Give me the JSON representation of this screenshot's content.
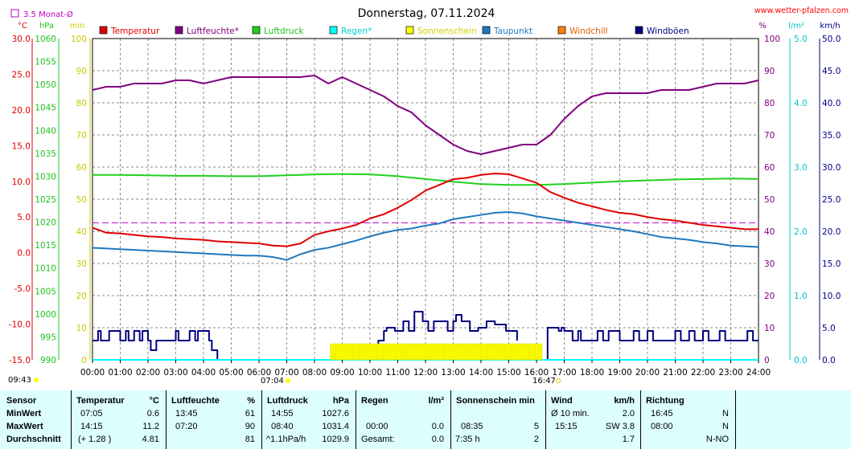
{
  "header": {
    "title": "Donnerstag, 07.11.2024",
    "site": "www.wetter-pfalzen.com",
    "avg_label": "3.5 Monat-Ø"
  },
  "units": {
    "temp": "°C",
    "pressure": "hPa",
    "minutes": "min",
    "percent": "%",
    "rain": "l/m²",
    "wind": "km/h"
  },
  "legend": [
    {
      "label": "Temperatur",
      "color": "#e00000",
      "textColor": "#e00000"
    },
    {
      "label": "Luftfeuchte*",
      "color": "#800080",
      "textColor": "#800080"
    },
    {
      "label": "Luftdruck",
      "color": "#20d020",
      "textColor": "#20c020"
    },
    {
      "label": "Regen*",
      "color": "#00ffff",
      "textColor": "#00d0d0"
    },
    {
      "label": "Sonnenschein",
      "color": "#ffff00",
      "textColor": "#d0d000"
    },
    {
      "label": "Taupunkt",
      "color": "#1e78c0",
      "textColor": "#1e78c0"
    },
    {
      "label": "Windchill",
      "color": "#ff8000",
      "textColor": "#e06000"
    },
    {
      "label": "Windböen",
      "color": "#000080",
      "textColor": "#000080"
    }
  ],
  "sun_markers": {
    "sunrise": "07:04",
    "sunset": "16:47"
  },
  "chart_data": {
    "type": "line",
    "title": "Donnerstag, 07.11.2024",
    "x_unit": "hours",
    "x_range": [
      0,
      24
    ],
    "x_ticks": [
      "00:00",
      "01:00",
      "02:00",
      "03:00",
      "04:00",
      "05:00",
      "06:00",
      "07:00",
      "08:00",
      "09:00",
      "10:00",
      "11:00",
      "12:00",
      "13:00",
      "14:00",
      "15:00",
      "16:00",
      "17:00",
      "18:00",
      "19:00",
      "20:00",
      "21:00",
      "22:00",
      "23:00",
      "24:00"
    ],
    "grid": true,
    "axes": {
      "temp": {
        "label": "°C",
        "range": [
          -15,
          30
        ],
        "ticks": [
          "30.0",
          "25.0",
          "20.0",
          "15.0",
          "10.0",
          "5.0",
          "0.0",
          "-5.0",
          "-10.0",
          "-15.0"
        ]
      },
      "pressure": {
        "label": "hPa",
        "range": [
          990,
          1060
        ],
        "ticks": [
          "1060",
          "1055",
          "1050",
          "1045",
          "1040",
          "1035",
          "1030",
          "1025",
          "1020",
          "1015",
          "1010",
          "1005",
          "1000",
          "995",
          "990"
        ]
      },
      "minutes": {
        "label": "min",
        "range": [
          0,
          100
        ],
        "ticks": [
          "100",
          "90",
          "80",
          "70",
          "60",
          "50",
          "40",
          "30",
          "20",
          "10",
          "0"
        ]
      },
      "humidity": {
        "label": "%",
        "range": [
          0,
          100
        ],
        "ticks": [
          "100",
          "90",
          "80",
          "70",
          "60",
          "50",
          "40",
          "30",
          "20",
          "10",
          "0"
        ]
      },
      "rain": {
        "label": "l/m²",
        "range": [
          0,
          5
        ],
        "ticks": [
          "5.0",
          "4.0",
          "3.0",
          "2.0",
          "1.0",
          "0.0"
        ]
      },
      "wind": {
        "label": "km/h",
        "range": [
          0,
          50
        ],
        "ticks": [
          "50.0",
          "45.0",
          "40.0",
          "35.0",
          "30.0",
          "25.0",
          "20.0",
          "15.0",
          "10.0",
          "5.0",
          "0.0"
        ]
      }
    },
    "reference_line": {
      "name": "3.5 Monat-Ø",
      "axis": "temp",
      "value": 4.2
    },
    "series": [
      {
        "name": "Luftfeuchte*",
        "axis": "humidity",
        "color": "#800080",
        "x": [
          0,
          0.5,
          1,
          1.5,
          2,
          2.5,
          3,
          3.5,
          4,
          4.5,
          5,
          5.5,
          6,
          6.5,
          7,
          7.5,
          8,
          8.5,
          9,
          9.5,
          10,
          10.5,
          11,
          11.5,
          12,
          12.5,
          13,
          13.5,
          14,
          14.5,
          15,
          15.5,
          16,
          16.5,
          17,
          17.5,
          18,
          18.5,
          19,
          19.5,
          20,
          20.5,
          21,
          21.5,
          22,
          22.5,
          23,
          23.5,
          24
        ],
        "y": [
          84,
          85,
          85,
          86,
          86,
          86,
          87,
          87,
          86,
          87,
          88,
          88,
          88,
          88,
          88,
          88,
          88.5,
          86,
          88,
          86,
          84,
          82,
          79,
          77,
          73,
          70,
          67,
          65,
          64,
          65,
          66,
          67,
          67,
          70,
          75,
          79,
          82,
          83,
          83,
          83,
          83,
          84,
          84,
          84,
          85,
          86,
          86,
          86,
          87
        ]
      },
      {
        "name": "Luftdruck",
        "axis": "pressure",
        "color": "#20d020",
        "x": [
          0,
          1,
          2,
          3,
          4,
          5,
          6,
          7,
          8,
          9,
          10,
          11,
          12,
          13,
          14,
          15,
          16,
          17,
          18,
          19,
          20,
          21,
          22,
          23,
          24
        ],
        "y": [
          1030.3,
          1030.3,
          1030.2,
          1030.1,
          1030.1,
          1030.0,
          1030.0,
          1030.2,
          1030.4,
          1030.5,
          1030.4,
          1030.0,
          1029.4,
          1028.8,
          1028.3,
          1028.1,
          1028.1,
          1028.3,
          1028.6,
          1028.9,
          1029.1,
          1029.3,
          1029.4,
          1029.5,
          1029.4
        ]
      },
      {
        "name": "Temperatur",
        "axis": "temp",
        "color": "#e00000",
        "x": [
          0,
          0.5,
          1,
          1.5,
          2,
          2.5,
          3,
          3.5,
          4,
          4.5,
          5,
          5.5,
          6,
          6.5,
          7,
          7.5,
          8,
          8.5,
          9,
          9.5,
          10,
          10.5,
          11,
          11.5,
          12,
          12.5,
          13,
          13.5,
          14,
          14.5,
          15,
          15.5,
          16,
          16.5,
          17,
          17.5,
          18,
          18.5,
          19,
          19.5,
          20,
          20.5,
          21,
          21.5,
          22,
          22.5,
          23,
          23.5,
          24
        ],
        "y": [
          3.5,
          2.8,
          2.7,
          2.5,
          2.3,
          2.2,
          2.0,
          1.9,
          1.8,
          1.6,
          1.5,
          1.4,
          1.3,
          1.0,
          0.9,
          1.3,
          2.5,
          3.0,
          3.4,
          3.9,
          4.8,
          5.4,
          6.3,
          7.4,
          8.7,
          9.5,
          10.3,
          10.5,
          10.9,
          11.1,
          11.0,
          10.4,
          9.8,
          8.5,
          7.7,
          7.0,
          6.5,
          6.0,
          5.6,
          5.4,
          5.0,
          4.7,
          4.5,
          4.2,
          3.9,
          3.7,
          3.5,
          3.3,
          3.3
        ]
      },
      {
        "name": "Taupunkt",
        "axis": "temp",
        "color": "#1e78c0",
        "x": [
          0,
          0.5,
          1,
          1.5,
          2,
          2.5,
          3,
          3.5,
          4,
          4.5,
          5,
          5.5,
          6,
          6.5,
          7,
          7.5,
          8,
          8.5,
          9,
          9.5,
          10,
          10.5,
          11,
          11.5,
          12,
          12.5,
          13,
          13.5,
          14,
          14.5,
          15,
          15.5,
          16,
          16.5,
          17,
          17.5,
          18,
          18.5,
          19,
          19.5,
          20,
          20.5,
          21,
          21.5,
          22,
          22.5,
          23,
          23.5,
          24
        ],
        "y": [
          0.7,
          0.6,
          0.5,
          0.4,
          0.3,
          0.2,
          0.1,
          0.0,
          -0.1,
          -0.2,
          -0.3,
          -0.4,
          -0.4,
          -0.6,
          -1.0,
          -0.2,
          0.4,
          0.7,
          1.2,
          1.7,
          2.3,
          2.8,
          3.2,
          3.4,
          3.8,
          4.1,
          4.7,
          5.0,
          5.3,
          5.6,
          5.7,
          5.5,
          5.1,
          4.8,
          4.5,
          4.2,
          3.9,
          3.6,
          3.3,
          3.0,
          2.6,
          2.2,
          2.0,
          1.8,
          1.5,
          1.3,
          1.0,
          0.9,
          0.8
        ]
      },
      {
        "name": "Windböen",
        "axis": "wind",
        "color": "#000080",
        "step": true,
        "x": [
          0,
          0.2,
          0.3,
          0.5,
          0.6,
          1.0,
          1.2,
          1.3,
          1.5,
          1.7,
          1.8,
          2.0,
          2.1,
          2.3,
          2.5,
          2.8,
          3.0,
          3.1,
          3.3,
          3.5,
          3.7,
          3.8,
          4.2,
          4.3,
          4.5,
          4.6,
          9.5,
          10.2,
          10.3,
          10.5,
          10.6,
          10.9,
          11.2,
          11.4,
          11.6,
          11.9,
          12.1,
          12.3,
          12.5,
          12.8,
          13.0,
          13.1,
          13.3,
          13.6,
          13.9,
          14.2,
          14.5,
          14.9,
          15.3,
          15.7,
          16.0,
          16.1,
          16.2,
          16.4,
          16.8,
          16.9,
          17.0,
          17.3,
          17.5,
          17.6,
          18.2,
          18.4,
          18.6,
          19.0,
          19.5,
          19.7,
          20.0,
          20.2,
          21.0,
          21.2,
          21.5,
          21.7,
          22.0,
          22.2,
          22.6,
          22.8,
          23.6,
          23.8,
          24.0
        ],
        "y": [
          3.0,
          4.5,
          3.0,
          3.0,
          4.5,
          3.0,
          4.5,
          3.0,
          4.5,
          3.0,
          4.5,
          3.0,
          1.5,
          3.0,
          3.0,
          3.0,
          4.5,
          3.0,
          3.0,
          4.5,
          3.0,
          4.5,
          3.0,
          1.5,
          0,
          null,
          null,
          0,
          3.0,
          4.5,
          5.0,
          4.5,
          6.0,
          4.5,
          7.5,
          6.0,
          4.5,
          6.0,
          6.0,
          4.5,
          6.0,
          7.0,
          6.0,
          4.5,
          5.0,
          6.0,
          5.5,
          4.5,
          3.0,
          null,
          null,
          null,
          0,
          5.0,
          4.5,
          5.0,
          4.5,
          3.0,
          4.5,
          3.0,
          4.5,
          3.0,
          4.5,
          3.0,
          4.5,
          3.0,
          4.5,
          3.0,
          4.5,
          3.0,
          4.5,
          3.0,
          4.5,
          3.0,
          4.5,
          3.0,
          4.5,
          3.0,
          3.0
        ]
      },
      {
        "name": "Regen*",
        "axis": "rain",
        "color": "#00ffff",
        "x": [
          0,
          24
        ],
        "y": [
          0,
          0
        ]
      },
      {
        "name": "Sonnenschein",
        "axis": "minutes",
        "color": "#ffff00",
        "type": "bar",
        "x_start": 8.58,
        "x_end": 16.2,
        "value": 5
      }
    ]
  },
  "stats": {
    "columns": [
      {
        "title": "Sensor",
        "unit": ""
      },
      {
        "title": "Temperatur",
        "unit": "°C"
      },
      {
        "title": "Luftfeuchte",
        "unit": "%"
      },
      {
        "title": "Luftdruck",
        "unit": "hPa"
      },
      {
        "title": "Regen",
        "unit": "l/m²"
      },
      {
        "title": "Sonnenschein min",
        "unit": ""
      },
      {
        "title": "Wind",
        "unit": "km/h"
      },
      {
        "title": "Richtung",
        "unit": ""
      }
    ],
    "rows": [
      {
        "label": "MinWert",
        "temp_time": "07:05",
        "temp_val": "0.6",
        "hum_time": "13:45",
        "hum_val": "61",
        "pres_time": "14:55",
        "pres_val": "1027.6",
        "rain_time": "",
        "rain_val": "",
        "sun_time": "",
        "sun_val": "",
        "wind_time": "Ø 10 min.",
        "wind_val": "2.0",
        "dir_time": "16:45",
        "dir_val": "N"
      },
      {
        "label": "MaxWert",
        "temp_time": "14:15",
        "temp_val": "11.2",
        "hum_time": "07:20",
        "hum_val": "90",
        "pres_time": "08:40",
        "pres_val": "1031.4",
        "rain_time": "00:00",
        "rain_val": "0.0",
        "sun_time": "08:35",
        "sun_val": "5",
        "wind_time": "15:15",
        "wind_val": "SW 3.8",
        "dir_time": "08:00",
        "dir_val": "N"
      },
      {
        "label": "Durchschnitt",
        "temp_time": "(+ 1.28 )",
        "temp_val": "4.81",
        "hum_time": "",
        "hum_val": "81",
        "pres_time": "^1.1hPa/h",
        "pres_val": "1029.9",
        "rain_time": "Gesamt:",
        "rain_val": "0.0",
        "sun_time": "7:35 h",
        "sun_val": "2",
        "wind_time": "",
        "wind_val": "1.7",
        "dir_time": "",
        "dir_val": "N-NO"
      }
    ]
  }
}
